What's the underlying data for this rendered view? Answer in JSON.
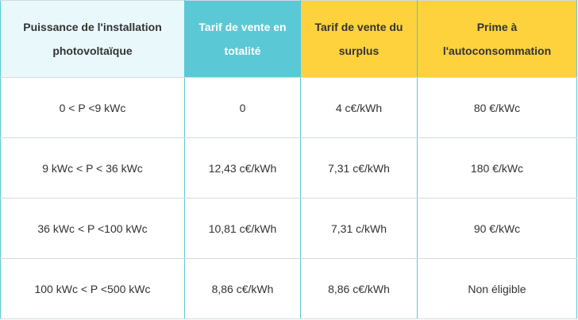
{
  "table": {
    "header": [
      "Puissance de l'installation photovoltaïque",
      "Tarif de vente en totalité",
      "Tarif de vente du surplus",
      "Prime à l'autoconsommation"
    ],
    "rows": [
      [
        "0 < P <9 kWc",
        "0",
        "4 c€/kWh",
        "80 €/kWc"
      ],
      [
        "9 kWc < P < 36 kWc",
        "12,43 c€/kWh",
        "7,31 c€/kWh",
        "180 €/kWc"
      ],
      [
        "36 kWc < P <100 kWc",
        "10,81 c€/kWh",
        "7,31 c/kWh",
        "90 €/kWc"
      ],
      [
        "100 kWc < P <500 kWc",
        "8,86 c€/kWh",
        "8,86 c€/kWh",
        "Non éligible"
      ]
    ]
  }
}
